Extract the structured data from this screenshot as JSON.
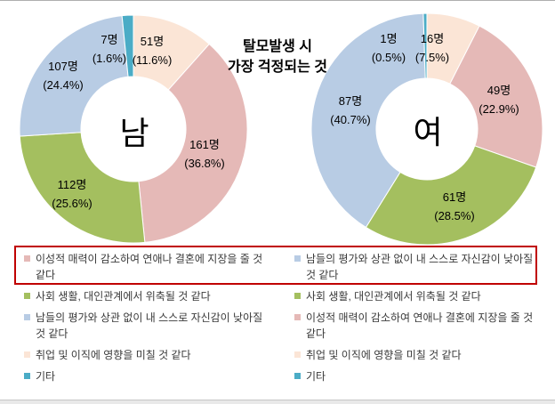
{
  "chart_title": {
    "line1": "탈모발생 시",
    "line2": "가장 걱정되는 것"
  },
  "palette": {
    "peach": "#fbe5d6",
    "pink": "#e5b9b7",
    "green": "#a4bf5f",
    "blue": "#b8cce4",
    "teal": "#4bacc6"
  },
  "highlight_color": "#c00000",
  "chart_data": [
    {
      "type": "pie",
      "subtype": "donut",
      "title": "탈모발생 시 가장 걱정되는 것",
      "group": "남",
      "legend_position": "bottom",
      "slices": [
        {
          "category": "취업 및 이직에 영향을 미칠 것 같다",
          "color": "peach",
          "value": 51,
          "percent": 11.6,
          "value_label": "51명",
          "percent_label": "(11.6%)"
        },
        {
          "category": "이성적 매력이 감소하여 연애나 결혼에 지장을 줄 것 같다",
          "color": "pink",
          "value": 161,
          "percent": 36.8,
          "value_label": "161명",
          "percent_label": "(36.8%)"
        },
        {
          "category": "사회 생활, 대인관계에서 위축될 것 같다",
          "color": "green",
          "value": 112,
          "percent": 25.6,
          "value_label": "112명",
          "percent_label": "(25.6%)"
        },
        {
          "category": "남들의 평가와 상관 없이 내 스스로 자신감이 낮아질 것 같다",
          "color": "blue",
          "value": 107,
          "percent": 24.4,
          "value_label": "107명",
          "percent_label": "(24.4%)"
        },
        {
          "category": "기타",
          "color": "teal",
          "value": 7,
          "percent": 1.6,
          "value_label": "7명",
          "percent_label": "(1.6%)"
        }
      ],
      "legend": [
        {
          "color": "pink",
          "label": "이성적 매력이 감소하여 연애나 결혼에 지장을 줄 것 같다",
          "highlighted": true
        },
        {
          "color": "green",
          "label": "사회 생활, 대인관계에서 위축될 것 같다",
          "highlighted": false
        },
        {
          "color": "blue",
          "label": "남들의 평가와 상관 없이 내 스스로 자신감이 낮아질 것 같다",
          "highlighted": false
        },
        {
          "color": "peach",
          "label": "취업 및 이직에 영향을 미칠 것 같다",
          "highlighted": false
        },
        {
          "color": "teal",
          "label": "기타",
          "highlighted": false
        }
      ]
    },
    {
      "type": "pie",
      "subtype": "donut",
      "title": "탈모발생 시 가장 걱정되는 것",
      "group": "여",
      "legend_position": "bottom",
      "slices": [
        {
          "category": "취업 및 이직에 영향을 미칠 것 같다",
          "color": "peach",
          "value": 16,
          "percent": 7.5,
          "value_label": "16명",
          "percent_label": "(7.5%)"
        },
        {
          "category": "이성적 매력이 감소하여 연애나 결혼에 지장을 줄 것 같다",
          "color": "pink",
          "value": 49,
          "percent": 22.9,
          "value_label": "49명",
          "percent_label": "(22.9%)"
        },
        {
          "category": "사회 생활, 대인관계에서 위축될 것 같다",
          "color": "green",
          "value": 61,
          "percent": 28.5,
          "value_label": "61명",
          "percent_label": "(28.5%)"
        },
        {
          "category": "남들의 평가와 상관 없이 내 스스로 자신감이 낮아질 것 같다",
          "color": "blue",
          "value": 87,
          "percent": 40.7,
          "value_label": "87명",
          "percent_label": "(40.7%)"
        },
        {
          "category": "기타",
          "color": "teal",
          "value": 1,
          "percent": 0.5,
          "value_label": "1명",
          "percent_label": "(0.5%)"
        }
      ],
      "legend": [
        {
          "color": "blue",
          "label": "남들의 평가와 상관 없이 내 스스로 자신감이 낮아질 것 같다",
          "highlighted": true
        },
        {
          "color": "green",
          "label": "사회 생활, 대인관계에서 위축될 것 같다",
          "highlighted": false
        },
        {
          "color": "pink",
          "label": "이성적 매력이 감소하여 연애나 결혼에 지장을 줄 것 같다",
          "highlighted": false
        },
        {
          "color": "peach",
          "label": "취업 및 이직에 영향을 미칠 것 같다",
          "highlighted": false
        },
        {
          "color": "teal",
          "label": "기타",
          "highlighted": false
        }
      ]
    }
  ]
}
